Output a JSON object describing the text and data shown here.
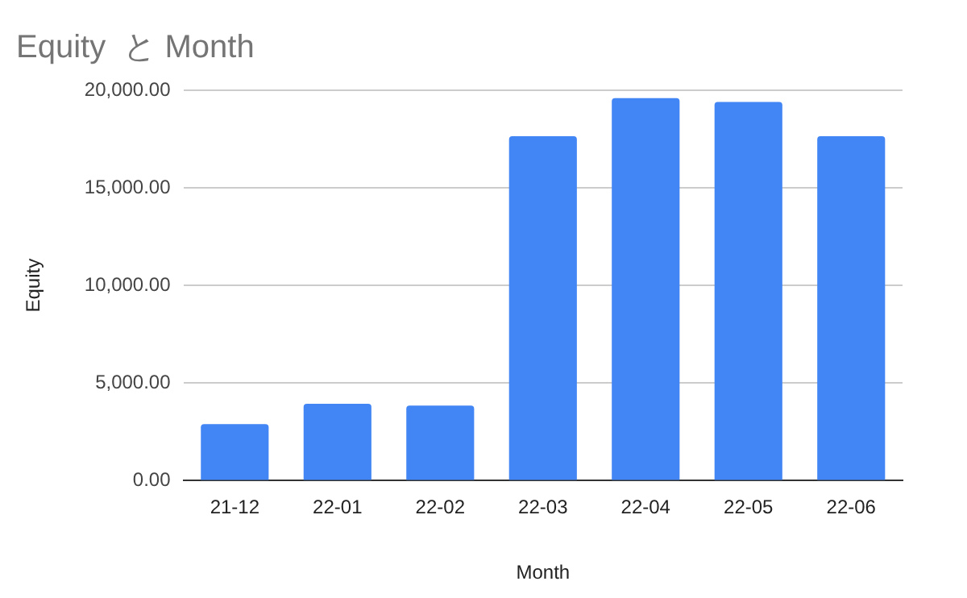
{
  "chart_data": {
    "type": "bar",
    "title": "Equity  と Month",
    "xlabel": "Month",
    "ylabel": "Equity",
    "categories": [
      "21-12",
      "22-01",
      "22-02",
      "22-03",
      "22-04",
      "22-05",
      "22-06"
    ],
    "values": [
      2900,
      3940,
      3850,
      17650,
      19600,
      19400,
      17650
    ],
    "color": "#4285f4",
    "ylim": [
      0,
      20000
    ],
    "yticks": [
      {
        "value": 0,
        "label": "0.00"
      },
      {
        "value": 5000,
        "label": "5,000.00"
      },
      {
        "value": 10000,
        "label": "10,000.00"
      },
      {
        "value": 15000,
        "label": "15,000.00"
      },
      {
        "value": 20000,
        "label": "20,000.00"
      }
    ],
    "grid": "y",
    "legend": false
  }
}
